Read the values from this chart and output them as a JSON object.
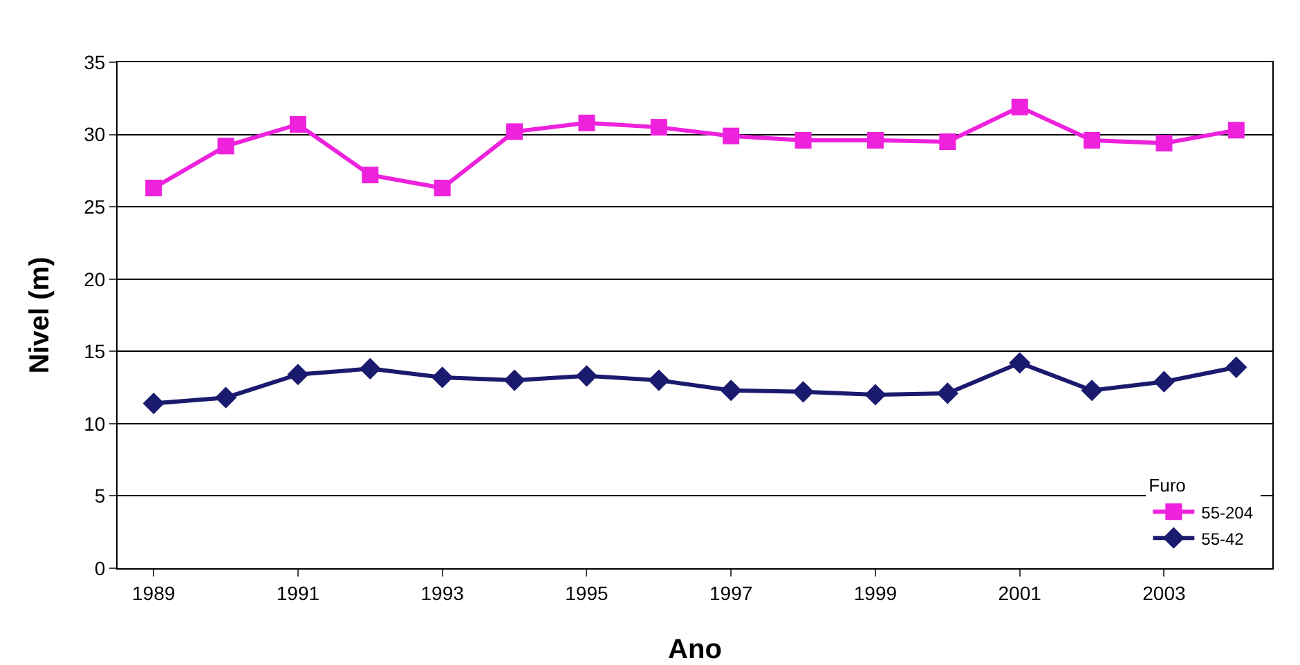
{
  "chart_data": {
    "type": "line",
    "xlabel": "Ano",
    "ylabel": "Nivel (m)",
    "legend_title": "Furo",
    "categories": [
      "1989",
      null,
      "1991",
      null,
      "1993",
      null,
      "1995",
      null,
      "1997",
      null,
      "1999",
      null,
      "2001",
      null,
      "2003",
      null
    ],
    "series": [
      {
        "name": "55-204",
        "color": "#ee22dd",
        "marker": "square",
        "values": [
          26.3,
          29.2,
          30.7,
          27.2,
          26.3,
          30.2,
          30.8,
          30.5,
          29.9,
          29.6,
          29.6,
          29.5,
          31.9,
          29.6,
          29.4,
          30.3
        ]
      },
      {
        "name": "55-42",
        "color": "#1a1a6e",
        "marker": "diamond",
        "values": [
          11.4,
          11.8,
          13.4,
          13.8,
          13.2,
          13.0,
          13.3,
          13.0,
          12.3,
          12.2,
          12.0,
          12.1,
          14.2,
          12.3,
          12.9,
          13.9
        ]
      }
    ],
    "ylim": [
      0,
      35
    ],
    "yticks": [
      0,
      5,
      10,
      15,
      20,
      25,
      30,
      35
    ],
    "grid": "y",
    "legend": "bottom right",
    "line_style": "solid"
  }
}
